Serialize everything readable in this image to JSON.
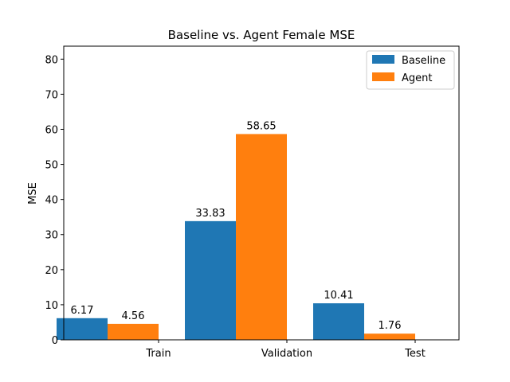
{
  "chart_data": {
    "type": "bar",
    "title": "Baseline vs. Agent Female MSE",
    "xlabel": "",
    "ylabel": "MSE",
    "categories": [
      "Train",
      "Validation",
      "Test"
    ],
    "series": [
      {
        "name": "Baseline",
        "values": [
          6.17,
          33.83,
          10.41
        ],
        "labels": [
          "6.17",
          "33.83",
          "10.41"
        ],
        "color": "#1f77b4"
      },
      {
        "name": "Agent",
        "values": [
          4.56,
          58.65,
          1.76
        ],
        "labels": [
          "4.56",
          "58.65",
          "1.76"
        ],
        "color": "#ff7f0e"
      }
    ],
    "ylim": [
      0,
      83.7
    ],
    "yticks": [
      0,
      10,
      20,
      30,
      40,
      50,
      60,
      70,
      80
    ],
    "grid": false,
    "legend_position": "top-right"
  }
}
